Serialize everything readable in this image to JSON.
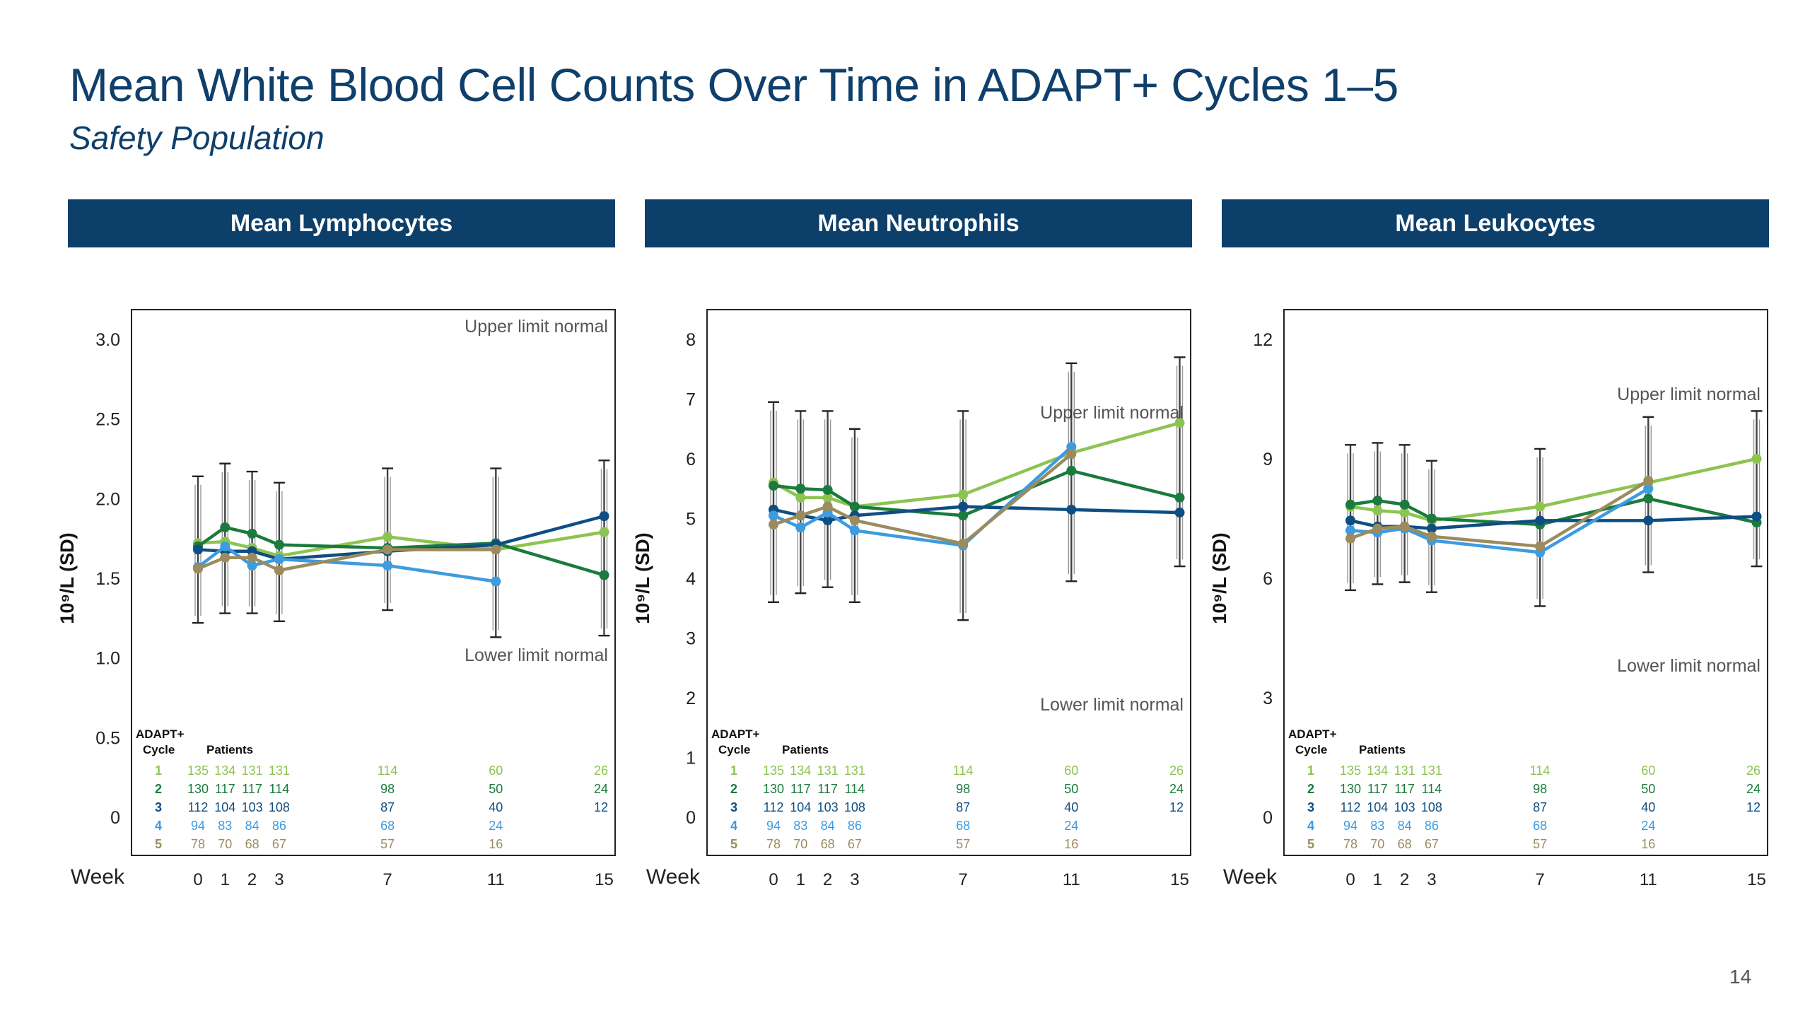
{
  "title": "Mean White Blood Cell Counts Over Time in ADAPT+ Cycles 1–5",
  "subtitle": "Safety Population",
  "page_number": "14",
  "colors": {
    "header_bg": "#0d3f6b",
    "title": "#0f3f6b",
    "cycle1": "#8dc451",
    "cycle2": "#1b7a3e",
    "cycle3": "#0e4e82",
    "cycle4": "#3d9be0",
    "cycle5": "#9c8b5c"
  },
  "chart_data": [
    {
      "type": "line",
      "panel_title": "Mean Lymphocytes",
      "ylabel": "10⁹/L (SD)",
      "xlabel": "Week",
      "x": [
        0,
        1,
        2,
        3,
        7,
        11,
        15
      ],
      "ylim": [
        0,
        3.0
      ],
      "yticks": [
        0,
        0.5,
        1.0,
        1.5,
        2.0,
        2.5,
        3.0
      ],
      "ytick_labels": [
        "0",
        "0.5",
        "1.0",
        "1.5",
        "2.0",
        "2.5",
        "3.0"
      ],
      "upper_limit_label": "Upper limit normal",
      "lower_limit_label": "Lower limit normal",
      "table_header": [
        "ADAPT+",
        "Cycle",
        "Patients"
      ],
      "series": [
        {
          "cycle": "1",
          "x": [
            0,
            1,
            2,
            3,
            7,
            11,
            15
          ],
          "values": [
            1.72,
            1.73,
            1.69,
            1.64,
            1.76,
            1.68,
            1.79
          ],
          "patients": [
            "135",
            "134",
            "131",
            "131",
            "114",
            "60",
            "26"
          ]
        },
        {
          "cycle": "2",
          "x": [
            0,
            1,
            2,
            3,
            7,
            11,
            15
          ],
          "values": [
            1.7,
            1.82,
            1.78,
            1.71,
            1.69,
            1.72,
            1.52
          ],
          "patients": [
            "130",
            "117",
            "117",
            "114",
            "98",
            "50",
            "24"
          ]
        },
        {
          "cycle": "3",
          "x": [
            0,
            1,
            2,
            3,
            7,
            11,
            15
          ],
          "values": [
            1.68,
            1.67,
            1.67,
            1.62,
            1.67,
            1.71,
            1.89
          ],
          "patients": [
            "112",
            "104",
            "103",
            "108",
            "87",
            "40",
            "12"
          ]
        },
        {
          "cycle": "4",
          "x": [
            0,
            1,
            2,
            3,
            7,
            11
          ],
          "values": [
            1.57,
            1.7,
            1.58,
            1.62,
            1.58,
            1.48
          ],
          "patients": [
            "94",
            "83",
            "84",
            "86",
            "68",
            "24"
          ]
        },
        {
          "cycle": "5",
          "x": [
            0,
            1,
            2,
            3,
            7,
            11
          ],
          "values": [
            1.56,
            1.63,
            1.63,
            1.55,
            1.68,
            1.68
          ],
          "patients": [
            "78",
            "70",
            "68",
            "67",
            "57",
            "16"
          ]
        }
      ],
      "error_bars": [
        {
          "x": 0,
          "low": 1.22,
          "high": 2.14
        },
        {
          "x": 1,
          "low": 1.28,
          "high": 2.22
        },
        {
          "x": 2,
          "low": 1.28,
          "high": 2.17
        },
        {
          "x": 3,
          "low": 1.23,
          "high": 2.1
        },
        {
          "x": 7,
          "low": 1.3,
          "high": 2.19
        },
        {
          "x": 11,
          "low": 1.13,
          "high": 2.19
        },
        {
          "x": 15,
          "low": 1.14,
          "high": 2.24
        }
      ]
    },
    {
      "type": "line",
      "panel_title": "Mean Neutrophils",
      "ylabel": "10⁹/L (SD)",
      "xlabel": "Week",
      "x": [
        0,
        1,
        2,
        3,
        7,
        11,
        15
      ],
      "ylim": [
        0,
        8
      ],
      "yticks": [
        0,
        1,
        2,
        3,
        4,
        5,
        6,
        7,
        8
      ],
      "ytick_labels": [
        "0",
        "1",
        "2",
        "3",
        "4",
        "5",
        "6",
        "7",
        "8"
      ],
      "upper_limit_label": "Upper  limit normal",
      "lower_limit_label": "Lower limit normal",
      "table_header": [
        "ADAPT+",
        "Cycle",
        "Patients"
      ],
      "series": [
        {
          "cycle": "1",
          "x": [
            0,
            1,
            2,
            3,
            7,
            11,
            15
          ],
          "values": [
            5.6,
            5.35,
            5.35,
            5.2,
            5.4,
            6.1,
            6.6
          ],
          "patients": [
            "135",
            "134",
            "131",
            "131",
            "114",
            "60",
            "26"
          ]
        },
        {
          "cycle": "2",
          "x": [
            0,
            1,
            2,
            3,
            7,
            11,
            15
          ],
          "values": [
            5.55,
            5.5,
            5.48,
            5.2,
            5.05,
            5.8,
            5.35
          ],
          "patients": [
            "130",
            "117",
            "117",
            "114",
            "98",
            "50",
            "24"
          ]
        },
        {
          "cycle": "3",
          "x": [
            0,
            1,
            2,
            3,
            7,
            11,
            15
          ],
          "values": [
            5.15,
            5.05,
            4.97,
            5.05,
            5.2,
            5.15,
            5.1
          ],
          "patients": [
            "112",
            "104",
            "103",
            "108",
            "87",
            "40",
            "12"
          ]
        },
        {
          "cycle": "4",
          "x": [
            0,
            1,
            2,
            3,
            7,
            11
          ],
          "values": [
            5.05,
            4.85,
            5.1,
            4.8,
            4.55,
            6.2
          ],
          "patients": [
            "94",
            "83",
            "84",
            "86",
            "68",
            "24"
          ]
        },
        {
          "cycle": "5",
          "x": [
            0,
            1,
            2,
            3,
            7,
            11
          ],
          "values": [
            4.9,
            5.05,
            5.2,
            4.97,
            4.58,
            6.08
          ],
          "patients": [
            "78",
            "70",
            "68",
            "67",
            "57",
            "16"
          ]
        }
      ],
      "error_bars": [
        {
          "x": 0,
          "low": 3.6,
          "high": 6.95
        },
        {
          "x": 1,
          "low": 3.75,
          "high": 6.8
        },
        {
          "x": 2,
          "low": 3.85,
          "high": 6.8
        },
        {
          "x": 3,
          "low": 3.6,
          "high": 6.5
        },
        {
          "x": 7,
          "low": 3.3,
          "high": 6.8
        },
        {
          "x": 11,
          "low": 3.95,
          "high": 7.6
        },
        {
          "x": 15,
          "low": 4.2,
          "high": 7.7
        }
      ]
    },
    {
      "type": "line",
      "panel_title": "Mean Leukocytes",
      "ylabel": "10⁹/L (SD)",
      "xlabel": "Week",
      "x": [
        0,
        1,
        2,
        3,
        7,
        11,
        15
      ],
      "ylim": [
        0,
        12
      ],
      "yticks": [
        0,
        3,
        6,
        9,
        12
      ],
      "ytick_labels": [
        "0",
        "3",
        "6",
        "9",
        "12"
      ],
      "upper_limit_label": "Upper limit normal",
      "lower_limit_label": "Lower limit normal",
      "table_header": [
        "ADAPT+",
        "Cycle",
        "Patients"
      ],
      "series": [
        {
          "cycle": "1",
          "x": [
            0,
            1,
            2,
            3,
            7,
            11,
            15
          ],
          "values": [
            7.8,
            7.7,
            7.65,
            7.45,
            7.8,
            8.4,
            9.0
          ],
          "patients": [
            "135",
            "134",
            "131",
            "131",
            "114",
            "60",
            "26"
          ]
        },
        {
          "cycle": "2",
          "x": [
            0,
            1,
            2,
            3,
            7,
            11,
            15
          ],
          "values": [
            7.85,
            7.95,
            7.85,
            7.5,
            7.35,
            8.0,
            7.4
          ],
          "patients": [
            "130",
            "117",
            "117",
            "114",
            "98",
            "50",
            "24"
          ]
        },
        {
          "cycle": "3",
          "x": [
            0,
            1,
            2,
            3,
            7,
            11,
            15
          ],
          "values": [
            7.45,
            7.3,
            7.3,
            7.25,
            7.45,
            7.45,
            7.55
          ],
          "patients": [
            "112",
            "104",
            "103",
            "108",
            "87",
            "40",
            "12"
          ]
        },
        {
          "cycle": "4",
          "x": [
            0,
            1,
            2,
            3,
            7,
            11
          ],
          "values": [
            7.2,
            7.15,
            7.25,
            6.95,
            6.65,
            8.25
          ],
          "patients": [
            "94",
            "83",
            "84",
            "86",
            "68",
            "24"
          ]
        },
        {
          "cycle": "5",
          "x": [
            0,
            1,
            2,
            3,
            7,
            11
          ],
          "values": [
            7.0,
            7.25,
            7.3,
            7.05,
            6.8,
            8.45
          ],
          "patients": [
            "78",
            "70",
            "68",
            "67",
            "57",
            "16"
          ]
        }
      ],
      "error_bars": [
        {
          "x": 0,
          "low": 5.7,
          "high": 9.35
        },
        {
          "x": 1,
          "low": 5.85,
          "high": 9.4
        },
        {
          "x": 2,
          "low": 5.9,
          "high": 9.35
        },
        {
          "x": 3,
          "low": 5.65,
          "high": 8.95
        },
        {
          "x": 7,
          "low": 5.3,
          "high": 9.25
        },
        {
          "x": 11,
          "low": 6.15,
          "high": 10.05
        },
        {
          "x": 15,
          "low": 6.3,
          "high": 10.2
        }
      ]
    }
  ]
}
